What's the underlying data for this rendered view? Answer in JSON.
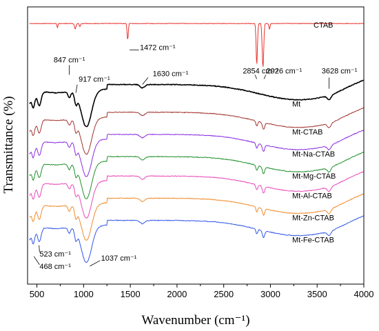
{
  "chart_data": {
    "type": "line",
    "xlabel": "Wavenumber (cm⁻¹)",
    "ylabel": "Transmittance (%)",
    "xlim": [
      400,
      4000
    ],
    "xticks": [
      500,
      1000,
      1500,
      2000,
      2500,
      3000,
      3500,
      4000
    ],
    "y_ticks_shown": false,
    "grid": false,
    "legend": "labels placed at right end of each curve",
    "series": [
      {
        "name": "CTAB",
        "color": "#e8302a",
        "baseline": 0.06
      },
      {
        "name": "Mt",
        "color": "#000000",
        "baseline": 0.28
      },
      {
        "name": "Mt-CTAB",
        "color": "#a0322d",
        "baseline": 0.38
      },
      {
        "name": "Mt-Na-CTAB",
        "color": "#8a2be2",
        "baseline": 0.46
      },
      {
        "name": "Mt-Mg-CTAB",
        "color": "#1f8f2a",
        "baseline": 0.54
      },
      {
        "name": "Mt-Al-CTAB",
        "color": "#e848b8",
        "baseline": 0.61
      },
      {
        "name": "Mt-Zn-CTAB",
        "color": "#f08a2a",
        "baseline": 0.69
      },
      {
        "name": "Mt-Fe-CTAB",
        "color": "#2f55e8",
        "baseline": 0.77
      }
    ],
    "annotations": [
      {
        "text": "1472 cm⁻¹",
        "x": 1472
      },
      {
        "text": "847 cm⁻¹",
        "x": 847
      },
      {
        "text": "917 cm⁻¹",
        "x": 917
      },
      {
        "text": "1630 cm⁻¹",
        "x": 1630
      },
      {
        "text": "2854 cm⁻¹",
        "x": 2854
      },
      {
        "text": "2926 cm⁻¹",
        "x": 2926
      },
      {
        "text": "3628 cm⁻¹",
        "x": 3628
      },
      {
        "text": "523 cm⁻¹",
        "x": 523
      },
      {
        "text": "468 cm⁻¹",
        "x": 468
      },
      {
        "text": "1037 cm⁻¹",
        "x": 1037
      }
    ]
  }
}
